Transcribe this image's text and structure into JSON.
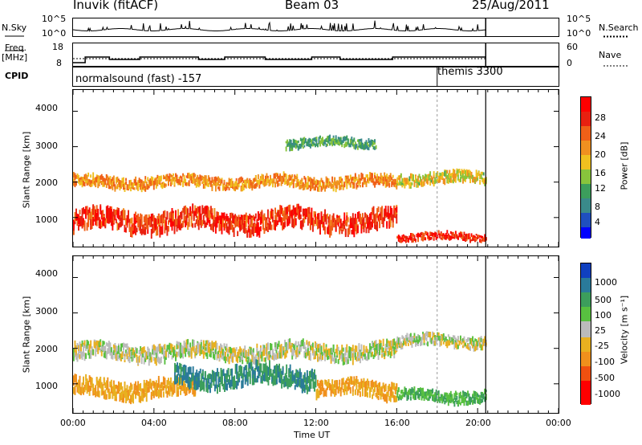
{
  "header": {
    "station": "Inuvik (fitACF)",
    "beam": "Beam 03",
    "date": "25/Aug/2011"
  },
  "noise_panel": {
    "left_label": "N.Sky",
    "right_label": "N.Search",
    "left_ticks": [
      "10^5",
      "10^0"
    ],
    "right_ticks": [
      "10^5",
      "10^0"
    ]
  },
  "freq_panel": {
    "left_label_line1": "Freq.",
    "left_label_line2": "[MHz]",
    "right_label": "Nave",
    "left_ticks": [
      "18",
      "8"
    ],
    "right_ticks": [
      "60",
      "0"
    ]
  },
  "cpid_panel": {
    "label": "CPID",
    "programs": [
      {
        "name": "normalsound (fast) -157",
        "start_hour": 0
      },
      {
        "name": "themis 3300",
        "start_hour": 18
      }
    ]
  },
  "power_panel": {
    "ylabel": "Slant Range [km]",
    "yticks": [
      "4000",
      "3000",
      "2000",
      "1000"
    ],
    "colorbar_label": "Power [dB]",
    "colorbar_ticks": [
      "28",
      "24",
      "20",
      "16",
      "12",
      "8",
      "4"
    ]
  },
  "velocity_panel": {
    "ylabel": "Slant Range [km]",
    "yticks": [
      "4000",
      "3000",
      "2000",
      "1000"
    ],
    "colorbar_label": "Velocity [m s⁻¹]",
    "colorbar_ticks": [
      "1000",
      "500",
      "100",
      "25",
      "-25",
      "-100",
      "-500",
      "-1000"
    ]
  },
  "xaxis": {
    "label": "Time UT",
    "ticks": [
      "00:00",
      "04:00",
      "08:00",
      "12:00",
      "16:00",
      "20:00",
      "00:00"
    ]
  },
  "colors": {
    "power_scale": [
      "#0000ff",
      "#1f4fbf",
      "#3a8a8a",
      "#3c9e5c",
      "#88c43c",
      "#f0c020",
      "#f09020",
      "#f06018",
      "#e82010",
      "#ff0000"
    ],
    "velocity_scale": [
      "#ff0000",
      "#f05010",
      "#f0901c",
      "#e8b020",
      "#bbbbbb",
      "#bbbbbb",
      "#58c040",
      "#3c9e5c",
      "#2a7a9a",
      "#1040c0"
    ]
  },
  "chart_data": [
    {
      "type": "heatmap",
      "title": "Power",
      "xlabel": "Time UT",
      "ylabel": "Slant Range [km]",
      "xlim_hours": [
        0,
        24
      ],
      "ylim_km": [
        180,
        4600
      ],
      "colorbar": {
        "label": "Power [dB]",
        "range": [
          0,
          30
        ]
      },
      "data_end_hour": 20.4,
      "scatter_bands": [
        {
          "start_hour": 0.0,
          "end_hour": 16.0,
          "center_km": 900,
          "width_km": 500,
          "dB": 26
        },
        {
          "start_hour": 0.0,
          "end_hour": 16.0,
          "center_km": 2000,
          "width_km": 300,
          "dB": 20
        },
        {
          "start_hour": 16.0,
          "end_hour": 20.4,
          "center_km": 2100,
          "width_km": 300,
          "dB": 16
        },
        {
          "start_hour": 16.0,
          "end_hour": 20.4,
          "center_km": 450,
          "width_km": 200,
          "dB": 27
        },
        {
          "start_hour": 10.5,
          "end_hour": 15.0,
          "center_km": 3100,
          "width_km": 250,
          "dB": 10
        }
      ]
    },
    {
      "type": "heatmap",
      "title": "Velocity",
      "xlabel": "Time UT",
      "ylabel": "Slant Range [km]",
      "xlim_hours": [
        0,
        24
      ],
      "ylim_km": [
        180,
        4600
      ],
      "colorbar": {
        "label": "Velocity [m s⁻¹]",
        "range": [
          -1000,
          1000
        ]
      },
      "data_end_hour": 20.4,
      "scatter_bands": [
        {
          "start_hour": 0.0,
          "end_hour": 16.0,
          "center_km": 1900,
          "width_km": 400,
          "velocity": 0
        },
        {
          "start_hour": 0.0,
          "end_hour": 6.0,
          "center_km": 850,
          "width_km": 450,
          "velocity": -100
        },
        {
          "start_hour": 5.0,
          "end_hour": 12.0,
          "center_km": 1200,
          "width_km": 500,
          "velocity": 300
        },
        {
          "start_hour": 12.0,
          "end_hour": 16.0,
          "center_km": 850,
          "width_km": 400,
          "velocity": -100
        },
        {
          "start_hour": 16.0,
          "end_hour": 20.4,
          "center_km": 2200,
          "width_km": 300,
          "velocity": 0
        },
        {
          "start_hour": 16.0,
          "end_hour": 20.4,
          "center_km": 650,
          "width_km": 300,
          "velocity": 100
        }
      ]
    }
  ]
}
